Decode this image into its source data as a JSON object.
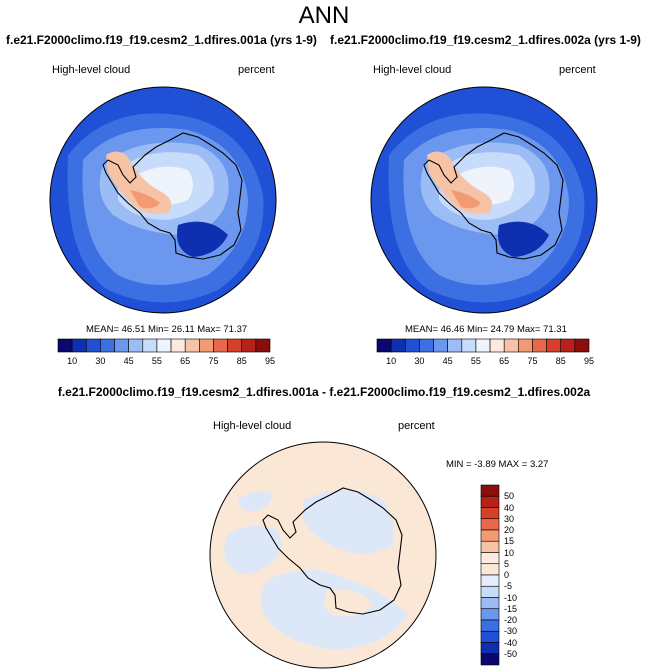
{
  "title": "ANN",
  "panels": [
    {
      "case": "f.e21.F2000climo.f19_f19.cesm2_1.dfires.001a (yrs 1-9)",
      "variable": "High-level cloud",
      "units": "percent",
      "stats": {
        "mean": "46.51",
        "min": "26.11",
        "max": "71.37"
      },
      "stats_text": "MEAN=  46.51   Min=  26.11   Max=  71.37"
    },
    {
      "case": "f.e21.F2000climo.f19_f19.cesm2_1.dfires.002a (yrs 1-9)",
      "variable": "High-level cloud",
      "units": "percent",
      "stats": {
        "mean": "46.46",
        "min": "24.79",
        "max": "71.31"
      },
      "stats_text": "MEAN=  46.46   Min=  24.79   Max=  71.31"
    }
  ],
  "colorbar": {
    "labels": [
      "10",
      "30",
      "45",
      "55",
      "65",
      "75",
      "85",
      "95"
    ],
    "colors": [
      "#08086e",
      "#0d2fb0",
      "#1f50d6",
      "#3b6fe2",
      "#6b97ee",
      "#9bbcf5",
      "#c7dbfa",
      "#eef3fc",
      "#fde9df",
      "#f7c3a6",
      "#f29a74",
      "#e8694a",
      "#d6402a",
      "#b8211a",
      "#8c0d0d"
    ]
  },
  "difference": {
    "title": "f.e21.F2000climo.f19_f19.cesm2_1.dfires.001a - f.e21.F2000climo.f19_f19.cesm2_1.dfires.002a",
    "variable": "High-level cloud",
    "units": "percent",
    "stats_text": "MIN =  -3.89 MAX =   3.27",
    "stats": {
      "min": "-3.89",
      "max": "3.27"
    },
    "colorbar": {
      "labels": [
        "50",
        "40",
        "30",
        "20",
        "15",
        "10",
        "5",
        "0",
        "-5",
        "-10",
        "-15",
        "-20",
        "-30",
        "-40",
        "-50"
      ],
      "colors": [
        "#8c0d0d",
        "#b8211a",
        "#d6402a",
        "#e8694a",
        "#f29a74",
        "#f7c3a6",
        "#fde9df",
        "#fbe7d6",
        "#e5eefa",
        "#c7dbfa",
        "#9bbcf5",
        "#6b97ee",
        "#3b6fe2",
        "#1f50d6",
        "#0d2fb0",
        "#08086e"
      ]
    }
  },
  "map_colors": {
    "ocean_dark": "#1f50d6",
    "ocean_mid": "#3b6fe2",
    "ocean_light": "#6b97ee",
    "land_pale": "#c7dbfa",
    "land_white": "#eef3fc",
    "warm_light": "#f7c3a6",
    "warm_mid": "#f29a74",
    "diff_peach": "#fbe7d6",
    "diff_blue": "#dce8f8"
  }
}
